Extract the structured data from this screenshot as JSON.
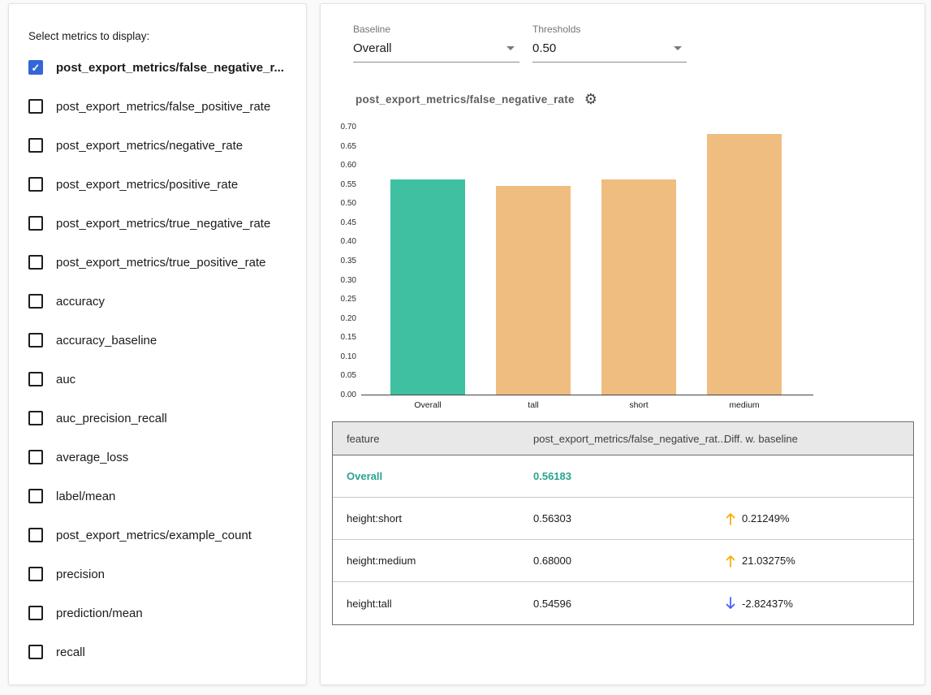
{
  "left_panel": {
    "title": "Select metrics to display:",
    "metrics": [
      {
        "label": "post_export_metrics/false_negative_r...",
        "checked": true
      },
      {
        "label": "post_export_metrics/false_positive_rate",
        "checked": false
      },
      {
        "label": "post_export_metrics/negative_rate",
        "checked": false
      },
      {
        "label": "post_export_metrics/positive_rate",
        "checked": false
      },
      {
        "label": "post_export_metrics/true_negative_rate",
        "checked": false
      },
      {
        "label": "post_export_metrics/true_positive_rate",
        "checked": false
      },
      {
        "label": "accuracy",
        "checked": false
      },
      {
        "label": "accuracy_baseline",
        "checked": false
      },
      {
        "label": "auc",
        "checked": false
      },
      {
        "label": "auc_precision_recall",
        "checked": false
      },
      {
        "label": "average_loss",
        "checked": false
      },
      {
        "label": "label/mean",
        "checked": false
      },
      {
        "label": "post_export_metrics/example_count",
        "checked": false
      },
      {
        "label": "precision",
        "checked": false
      },
      {
        "label": "prediction/mean",
        "checked": false
      },
      {
        "label": "recall",
        "checked": false
      }
    ]
  },
  "controls": {
    "baseline_label": "Baseline",
    "baseline_value": "Overall",
    "thresholds_label": "Thresholds",
    "thresholds_value": "0.50"
  },
  "chart": {
    "title": "post_export_metrics/false_negative_rate"
  },
  "chart_data": {
    "type": "bar",
    "title": "post_export_metrics/false_negative_rate",
    "categories": [
      "Overall",
      "tall",
      "short",
      "medium"
    ],
    "values": [
      0.56183,
      0.54596,
      0.56303,
      0.68
    ],
    "bar_colors": [
      "#3ec0a1",
      "#f0bd80",
      "#f0bd80",
      "#f0bd80"
    ],
    "xlabel": "",
    "ylabel": "",
    "ylim": [
      0,
      0.7
    ],
    "ytick_step": 0.05,
    "grid": false,
    "legend": "none"
  },
  "table": {
    "headers": [
      "feature",
      "post_export_metrics/false_negative_rat...",
      "Diff. w. baseline"
    ],
    "rows": [
      {
        "feature": "Overall",
        "value": "0.56183",
        "diff": "",
        "direction": "",
        "is_baseline": true
      },
      {
        "feature": "height:short",
        "value": "0.56303",
        "diff": "0.21249%",
        "direction": "up",
        "is_baseline": false
      },
      {
        "feature": "height:medium",
        "value": "0.68000",
        "diff": "21.03275%",
        "direction": "up",
        "is_baseline": false
      },
      {
        "feature": "height:tall",
        "value": "0.54596",
        "diff": "-2.82437%",
        "direction": "down",
        "is_baseline": false
      }
    ]
  },
  "colors": {
    "checkbox_blue": "#3367d6",
    "baseline_teal": "#2aa38d",
    "bar_teal": "#3ec0a1",
    "bar_orange": "#f0bd80",
    "up_arrow": "#f9ab00",
    "down_arrow": "#3d5afe"
  }
}
